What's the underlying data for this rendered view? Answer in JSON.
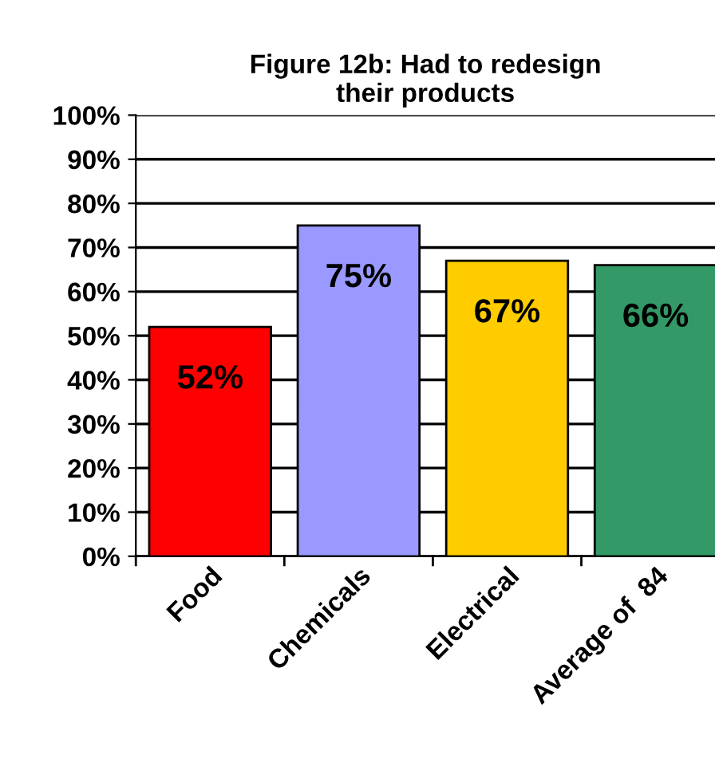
{
  "chart_data": {
    "type": "bar",
    "title": "Figure 12b: Had to redesign\ntheir products",
    "categories": [
      "Food",
      "Chemicals",
      "Electrical",
      "Average of  84"
    ],
    "values": [
      52,
      75,
      67,
      66
    ],
    "colors": [
      "#ff0000",
      "#9999ff",
      "#ffcc00",
      "#339966"
    ],
    "value_labels": [
      "52%",
      "75%",
      "67%",
      "66%"
    ],
    "ylim": [
      0,
      100
    ],
    "yticks": [
      {
        "value": 0,
        "label": "0%"
      },
      {
        "value": 10,
        "label": "10%"
      },
      {
        "value": 20,
        "label": "20%"
      },
      {
        "value": 30,
        "label": "30%"
      },
      {
        "value": 40,
        "label": "40%"
      },
      {
        "value": 50,
        "label": "50%"
      },
      {
        "value": 60,
        "label": "60%"
      },
      {
        "value": 70,
        "label": "70%"
      },
      {
        "value": 80,
        "label": "80%"
      },
      {
        "value": 90,
        "label": "90%"
      },
      {
        "value": 100,
        "label": "100%"
      }
    ],
    "grid": "y"
  }
}
